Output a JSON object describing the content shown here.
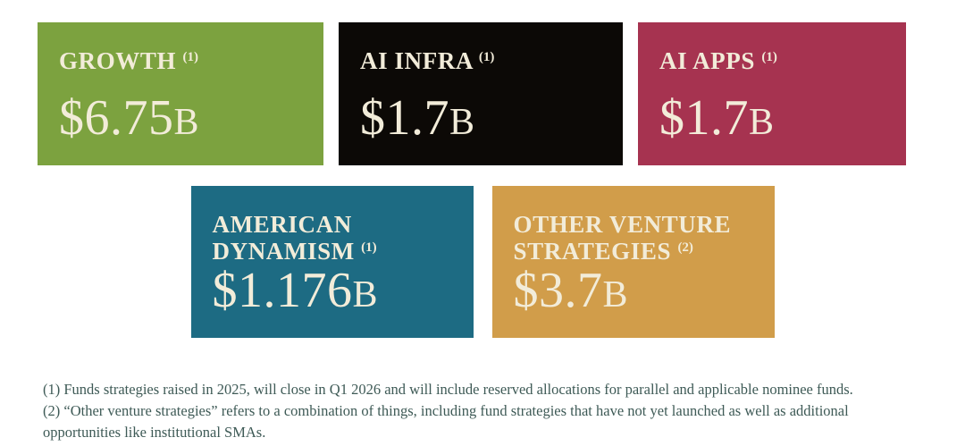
{
  "cards": [
    {
      "title": "GROWTH",
      "marker": "(1)",
      "currency": "$",
      "value": "6.75",
      "unit": "B",
      "color": "#7ca23f"
    },
    {
      "title": "AI INFRA",
      "marker": "(1)",
      "currency": "$",
      "value": "1.7",
      "unit": "B",
      "color": "#0c0906"
    },
    {
      "title": "AI APPS",
      "marker": "(1)",
      "currency": "$",
      "value": "1.7",
      "unit": "B",
      "color": "#a63350"
    },
    {
      "title": "AMERICAN DYNAMISM",
      "marker": "(1)",
      "currency": "$",
      "value": "1.176",
      "unit": "B",
      "color": "#1d6b83"
    },
    {
      "title": "OTHER VENTURE STRATEGIES",
      "marker": "(2)",
      "currency": "$",
      "value": "3.7",
      "unit": "B",
      "color": "#d19d4a"
    }
  ],
  "footnotes": [
    "(1) Funds strategies raised in 2025, will close in Q1 2026 and will include reserved allocations for parallel and applicable nominee funds.",
    "(2) “Other venture strategies” refers to a combination of things, including fund strategies that have not yet launched as well as additional opportunities like institutional SMAs."
  ],
  "chart_data": {
    "type": "table",
    "title": "Fund strategy sizes",
    "categories": [
      "Growth",
      "AI Infra",
      "AI Apps",
      "American Dynamism",
      "Other Venture Strategies"
    ],
    "values": [
      6.75,
      1.7,
      1.7,
      1.176,
      3.7
    ],
    "units": "USD billions",
    "value_labels": [
      "$6.75B",
      "$1.7B",
      "$1.7B",
      "$1.176B",
      "$3.7B"
    ],
    "footnote_markers": [
      "(1)",
      "(1)",
      "(1)",
      "(1)",
      "(2)"
    ],
    "notes": [
      "(1) Funds strategies raised in 2025, will close in Q1 2026 and will include reserved allocations for parallel and applicable nominee funds.",
      "(2) “Other venture strategies” refers to a combination of things, including fund strategies that have not yet launched as well as additional opportunities like institutional SMAs."
    ]
  }
}
